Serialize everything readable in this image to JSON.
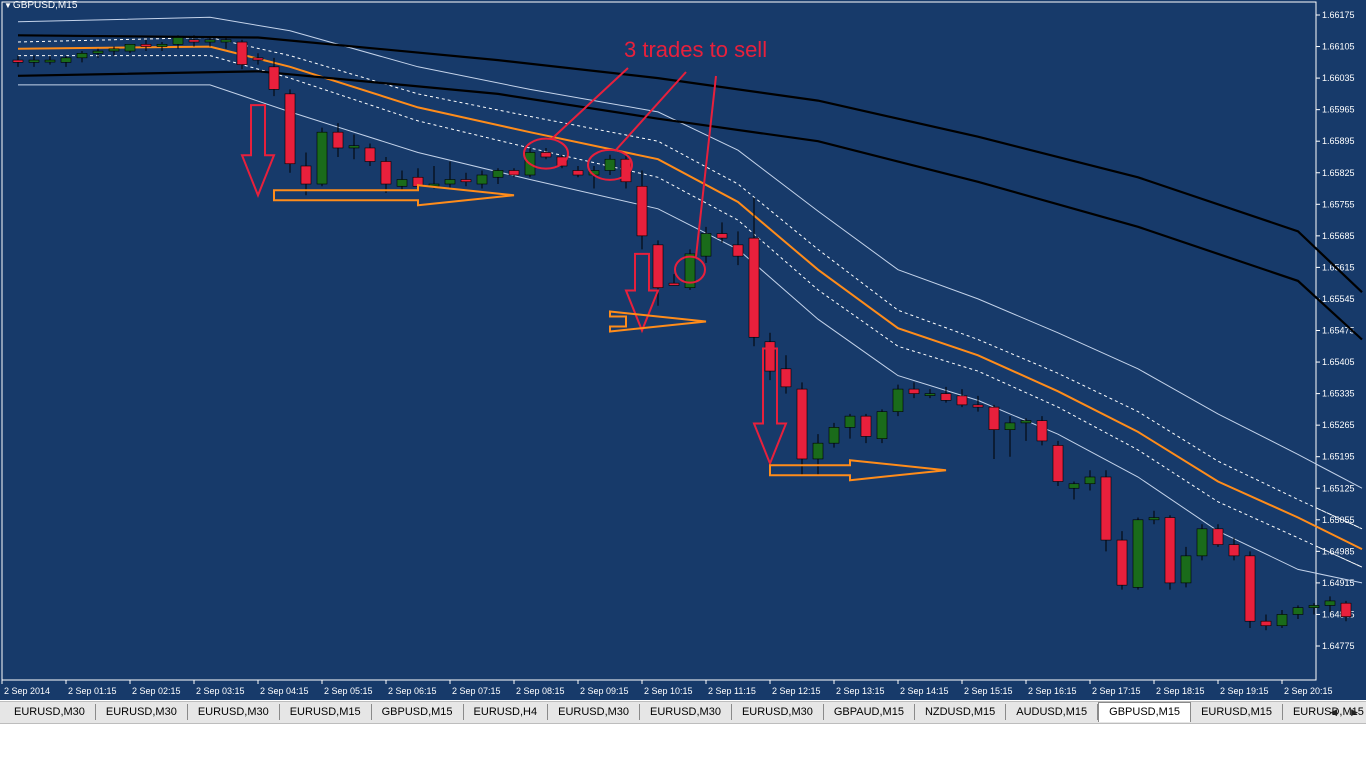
{
  "window": {
    "title": "GBPUSD,M15",
    "menu_icon": "triangle-down-icon"
  },
  "colors": {
    "background": "#173a6a",
    "axis": "#ffffff",
    "bull_candle": "#1a6b1a",
    "bear_candle": "#e8203c",
    "wick": "#000000",
    "ema": "#ff8c1a",
    "inner_band": "#ffffff",
    "outer_band": "#c4d3ea",
    "long_ma": "#000000",
    "annotation_red": "#e8203c",
    "annotation_orange": "#ff8c1a"
  },
  "chart_data": {
    "type": "candlestick",
    "symbol": "GBPUSD",
    "timeframe": "M15",
    "title": "GBPUSD,M15",
    "ylim": [
      1.64775,
      1.66175
    ],
    "y_ticks": [
      "1.66175",
      "1.66105",
      "1.66035",
      "1.65965",
      "1.65895",
      "1.65825",
      "1.65755",
      "1.65685",
      "1.65615",
      "1.65545",
      "1.65475",
      "1.65405",
      "1.65335",
      "1.65265",
      "1.65195",
      "1.65125",
      "1.65055",
      "1.64985",
      "1.64915",
      "1.64845",
      "1.64775"
    ],
    "x_ticks": [
      "2 Sep 2014",
      "2 Sep 01:15",
      "2 Sep 02:15",
      "2 Sep 03:15",
      "2 Sep 04:15",
      "2 Sep 05:15",
      "2 Sep 06:15",
      "2 Sep 07:15",
      "2 Sep 08:15",
      "2 Sep 09:15",
      "2 Sep 10:15",
      "2 Sep 11:15",
      "2 Sep 12:15",
      "2 Sep 13:15",
      "2 Sep 14:15",
      "2 Sep 15:15",
      "2 Sep 16:15",
      "2 Sep 17:15",
      "2 Sep 18:15",
      "2 Sep 19:15",
      "2 Sep 20:15"
    ],
    "grid": false,
    "annotation": "3 trades to sell",
    "candles": [
      {
        "o": 1.66075,
        "h": 1.66085,
        "l": 1.6606,
        "c": 1.6607
      },
      {
        "o": 1.6607,
        "h": 1.66085,
        "l": 1.6606,
        "c": 1.66075
      },
      {
        "o": 1.66075,
        "h": 1.66085,
        "l": 1.66065,
        "c": 1.66075
      },
      {
        "o": 1.6607,
        "h": 1.66085,
        "l": 1.6606,
        "c": 1.6608
      },
      {
        "o": 1.6608,
        "h": 1.66095,
        "l": 1.6607,
        "c": 1.6609
      },
      {
        "o": 1.6609,
        "h": 1.661,
        "l": 1.6608,
        "c": 1.66095
      },
      {
        "o": 1.66095,
        "h": 1.66105,
        "l": 1.66085,
        "c": 1.661
      },
      {
        "o": 1.66095,
        "h": 1.6611,
        "l": 1.6609,
        "c": 1.6611
      },
      {
        "o": 1.6611,
        "h": 1.6612,
        "l": 1.66095,
        "c": 1.66105
      },
      {
        "o": 1.66105,
        "h": 1.66115,
        "l": 1.66095,
        "c": 1.6611
      },
      {
        "o": 1.6611,
        "h": 1.6613,
        "l": 1.661,
        "c": 1.66125
      },
      {
        "o": 1.6612,
        "h": 1.6613,
        "l": 1.66105,
        "c": 1.66115
      },
      {
        "o": 1.66115,
        "h": 1.66125,
        "l": 1.66105,
        "c": 1.6612
      },
      {
        "o": 1.66115,
        "h": 1.66125,
        "l": 1.661,
        "c": 1.6612
      },
      {
        "o": 1.66115,
        "h": 1.6612,
        "l": 1.66055,
        "c": 1.66065
      },
      {
        "o": 1.6608,
        "h": 1.6609,
        "l": 1.66065,
        "c": 1.66075
      },
      {
        "o": 1.6606,
        "h": 1.6608,
        "l": 1.65995,
        "c": 1.6601
      },
      {
        "o": 1.66,
        "h": 1.6601,
        "l": 1.65825,
        "c": 1.65845
      },
      {
        "o": 1.6584,
        "h": 1.6587,
        "l": 1.65775,
        "c": 1.658
      },
      {
        "o": 1.658,
        "h": 1.65925,
        "l": 1.65795,
        "c": 1.65915
      },
      {
        "o": 1.65915,
        "h": 1.65935,
        "l": 1.6586,
        "c": 1.6588
      },
      {
        "o": 1.6588,
        "h": 1.6591,
        "l": 1.65855,
        "c": 1.65885
      },
      {
        "o": 1.6588,
        "h": 1.6589,
        "l": 1.6584,
        "c": 1.6585
      },
      {
        "o": 1.6585,
        "h": 1.6586,
        "l": 1.6578,
        "c": 1.658
      },
      {
        "o": 1.65795,
        "h": 1.6583,
        "l": 1.65785,
        "c": 1.6581
      },
      {
        "o": 1.65815,
        "h": 1.65835,
        "l": 1.6579,
        "c": 1.65795
      },
      {
        "o": 1.658,
        "h": 1.6584,
        "l": 1.6579,
        "c": 1.658
      },
      {
        "o": 1.658,
        "h": 1.6585,
        "l": 1.6579,
        "c": 1.6581
      },
      {
        "o": 1.6581,
        "h": 1.65825,
        "l": 1.65795,
        "c": 1.65805
      },
      {
        "o": 1.658,
        "h": 1.6583,
        "l": 1.6579,
        "c": 1.6582
      },
      {
        "o": 1.65815,
        "h": 1.65835,
        "l": 1.658,
        "c": 1.6583
      },
      {
        "o": 1.6583,
        "h": 1.65835,
        "l": 1.65815,
        "c": 1.6582
      },
      {
        "o": 1.6582,
        "h": 1.6588,
        "l": 1.65815,
        "c": 1.6587
      },
      {
        "o": 1.6587,
        "h": 1.6588,
        "l": 1.65855,
        "c": 1.6586
      },
      {
        "o": 1.6586,
        "h": 1.65865,
        "l": 1.65835,
        "c": 1.6584
      },
      {
        "o": 1.6583,
        "h": 1.6584,
        "l": 1.65815,
        "c": 1.6582
      },
      {
        "o": 1.6582,
        "h": 1.6584,
        "l": 1.6579,
        "c": 1.6583
      },
      {
        "o": 1.6583,
        "h": 1.65865,
        "l": 1.6582,
        "c": 1.65855
      },
      {
        "o": 1.65855,
        "h": 1.65865,
        "l": 1.6579,
        "c": 1.65805
      },
      {
        "o": 1.65795,
        "h": 1.6583,
        "l": 1.65655,
        "c": 1.65685
      },
      {
        "o": 1.65665,
        "h": 1.65675,
        "l": 1.6553,
        "c": 1.6557
      },
      {
        "o": 1.6558,
        "h": 1.656,
        "l": 1.65575,
        "c": 1.65575
      },
      {
        "o": 1.6557,
        "h": 1.65655,
        "l": 1.65565,
        "c": 1.65645
      },
      {
        "o": 1.6564,
        "h": 1.65705,
        "l": 1.65625,
        "c": 1.6569
      },
      {
        "o": 1.6569,
        "h": 1.65715,
        "l": 1.6567,
        "c": 1.6568
      },
      {
        "o": 1.65665,
        "h": 1.65695,
        "l": 1.6562,
        "c": 1.6564
      },
      {
        "o": 1.6568,
        "h": 1.6577,
        "l": 1.6544,
        "c": 1.6546
      },
      {
        "o": 1.6545,
        "h": 1.6547,
        "l": 1.65365,
        "c": 1.65385
      },
      {
        "o": 1.6539,
        "h": 1.6542,
        "l": 1.65335,
        "c": 1.6535
      },
      {
        "o": 1.65345,
        "h": 1.6536,
        "l": 1.65155,
        "c": 1.6519
      },
      {
        "o": 1.6519,
        "h": 1.65245,
        "l": 1.65155,
        "c": 1.65225
      },
      {
        "o": 1.65225,
        "h": 1.6527,
        "l": 1.65215,
        "c": 1.6526
      },
      {
        "o": 1.6526,
        "h": 1.6529,
        "l": 1.65235,
        "c": 1.65285
      },
      {
        "o": 1.65285,
        "h": 1.6529,
        "l": 1.65225,
        "c": 1.6524
      },
      {
        "o": 1.65235,
        "h": 1.653,
        "l": 1.65225,
        "c": 1.65295
      },
      {
        "o": 1.65295,
        "h": 1.65355,
        "l": 1.65285,
        "c": 1.65345
      },
      {
        "o": 1.65345,
        "h": 1.6536,
        "l": 1.65325,
        "c": 1.65335
      },
      {
        "o": 1.65335,
        "h": 1.65345,
        "l": 1.65325,
        "c": 1.65335
      },
      {
        "o": 1.65335,
        "h": 1.6535,
        "l": 1.65315,
        "c": 1.6532
      },
      {
        "o": 1.6533,
        "h": 1.65345,
        "l": 1.65305,
        "c": 1.6531
      },
      {
        "o": 1.6531,
        "h": 1.6533,
        "l": 1.65295,
        "c": 1.65305
      },
      {
        "o": 1.65305,
        "h": 1.6531,
        "l": 1.6519,
        "c": 1.65255
      },
      {
        "o": 1.65255,
        "h": 1.65285,
        "l": 1.65195,
        "c": 1.6527
      },
      {
        "o": 1.6527,
        "h": 1.6528,
        "l": 1.6523,
        "c": 1.65275
      },
      {
        "o": 1.65275,
        "h": 1.65285,
        "l": 1.6522,
        "c": 1.6523
      },
      {
        "o": 1.6522,
        "h": 1.6523,
        "l": 1.6513,
        "c": 1.6514
      },
      {
        "o": 1.65125,
        "h": 1.6514,
        "l": 1.651,
        "c": 1.65135
      },
      {
        "o": 1.65135,
        "h": 1.65165,
        "l": 1.6512,
        "c": 1.6515
      },
      {
        "o": 1.6515,
        "h": 1.65165,
        "l": 1.64985,
        "c": 1.6501
      },
      {
        "o": 1.6501,
        "h": 1.6503,
        "l": 1.649,
        "c": 1.6491
      },
      {
        "o": 1.64905,
        "h": 1.6506,
        "l": 1.649,
        "c": 1.65055
      },
      {
        "o": 1.65055,
        "h": 1.65075,
        "l": 1.65045,
        "c": 1.6506
      },
      {
        "o": 1.6506,
        "h": 1.65065,
        "l": 1.649,
        "c": 1.64915
      },
      {
        "o": 1.64915,
        "h": 1.64995,
        "l": 1.64905,
        "c": 1.64975
      },
      {
        "o": 1.64975,
        "h": 1.65045,
        "l": 1.64965,
        "c": 1.65035
      },
      {
        "o": 1.65035,
        "h": 1.65045,
        "l": 1.64995,
        "c": 1.65
      },
      {
        "o": 1.65,
        "h": 1.65015,
        "l": 1.64965,
        "c": 1.64975
      },
      {
        "o": 1.64975,
        "h": 1.64985,
        "l": 1.64815,
        "c": 1.6483
      },
      {
        "o": 1.6483,
        "h": 1.64845,
        "l": 1.6481,
        "c": 1.6482
      },
      {
        "o": 1.6482,
        "h": 1.64855,
        "l": 1.64815,
        "c": 1.64845
      },
      {
        "o": 1.64845,
        "h": 1.64865,
        "l": 1.64835,
        "c": 1.6486
      },
      {
        "o": 1.6486,
        "h": 1.6487,
        "l": 1.64845,
        "c": 1.64865
      },
      {
        "o": 1.64865,
        "h": 1.64885,
        "l": 1.6485,
        "c": 1.64875
      },
      {
        "o": 1.6487,
        "h": 1.64875,
        "l": 1.6483,
        "c": 1.6484
      }
    ],
    "indicators": [
      {
        "name": "ema",
        "color": "#ff8c1a",
        "values": [
          [
            0,
            1.661
          ],
          [
            12,
            1.66105
          ],
          [
            17,
            1.6606
          ],
          [
            25,
            1.6597
          ],
          [
            32,
            1.65915
          ],
          [
            40,
            1.65855
          ],
          [
            45,
            1.6576
          ],
          [
            50,
            1.6561
          ],
          [
            55,
            1.6548
          ],
          [
            60,
            1.6542
          ],
          [
            65,
            1.6534
          ],
          [
            70,
            1.6525
          ],
          [
            75,
            1.6514
          ],
          [
            80,
            1.6506
          ],
          [
            84,
            1.6499
          ]
        ]
      },
      {
        "name": "inner-upper-band",
        "color": "#ffffff",
        "dashed": true,
        "values": [
          [
            0,
            1.66115
          ],
          [
            12,
            1.66125
          ],
          [
            17,
            1.66085
          ],
          [
            25,
            1.66
          ],
          [
            32,
            1.6595
          ],
          [
            40,
            1.65895
          ],
          [
            45,
            1.658
          ],
          [
            50,
            1.65655
          ],
          [
            55,
            1.6552
          ],
          [
            60,
            1.65455
          ],
          [
            65,
            1.6538
          ],
          [
            70,
            1.65295
          ],
          [
            75,
            1.65185
          ],
          [
            80,
            1.651
          ],
          [
            84,
            1.65035
          ]
        ]
      },
      {
        "name": "inner-lower-band",
        "color": "#ffffff",
        "dashed": true,
        "values": [
          [
            0,
            1.66085
          ],
          [
            12,
            1.66085
          ],
          [
            17,
            1.66035
          ],
          [
            25,
            1.6594
          ],
          [
            32,
            1.6588
          ],
          [
            40,
            1.65815
          ],
          [
            45,
            1.6572
          ],
          [
            50,
            1.65565
          ],
          [
            55,
            1.6544
          ],
          [
            60,
            1.65385
          ],
          [
            65,
            1.65305
          ],
          [
            70,
            1.6521
          ],
          [
            75,
            1.65095
          ],
          [
            80,
            1.65015
          ],
          [
            84,
            1.6495
          ]
        ]
      },
      {
        "name": "outer-upper-band",
        "color": "#c4d3ea",
        "values": [
          [
            0,
            1.6616
          ],
          [
            12,
            1.6617
          ],
          [
            17,
            1.6614
          ],
          [
            25,
            1.6606
          ],
          [
            32,
            1.6601
          ],
          [
            40,
            1.6596
          ],
          [
            45,
            1.65875
          ],
          [
            50,
            1.6574
          ],
          [
            55,
            1.6561
          ],
          [
            60,
            1.65545
          ],
          [
            65,
            1.6547
          ],
          [
            70,
            1.6539
          ],
          [
            75,
            1.6529
          ],
          [
            80,
            1.652
          ],
          [
            84,
            1.65125
          ]
        ]
      },
      {
        "name": "outer-lower-band",
        "color": "#c4d3ea",
        "values": [
          [
            0,
            1.6602
          ],
          [
            12,
            1.6602
          ],
          [
            17,
            1.6596
          ],
          [
            25,
            1.6587
          ],
          [
            32,
            1.6581
          ],
          [
            40,
            1.65745
          ],
          [
            45,
            1.65655
          ],
          [
            50,
            1.655
          ],
          [
            55,
            1.65375
          ],
          [
            60,
            1.6532
          ],
          [
            65,
            1.65245
          ],
          [
            70,
            1.6515
          ],
          [
            75,
            1.6503
          ],
          [
            80,
            1.64945
          ],
          [
            84,
            1.64915
          ]
        ]
      },
      {
        "name": "long-ma-upper",
        "color": "#000000",
        "values": [
          [
            0,
            1.6613
          ],
          [
            15,
            1.66125
          ],
          [
            30,
            1.66075
          ],
          [
            40,
            1.66035
          ],
          [
            50,
            1.65985
          ],
          [
            60,
            1.65905
          ],
          [
            70,
            1.65815
          ],
          [
            80,
            1.65695
          ],
          [
            84,
            1.6556
          ]
        ]
      },
      {
        "name": "long-ma-lower",
        "color": "#000000",
        "values": [
          [
            0,
            1.6604
          ],
          [
            15,
            1.6605
          ],
          [
            30,
            1.66
          ],
          [
            40,
            1.65945
          ],
          [
            50,
            1.65895
          ],
          [
            60,
            1.65805
          ],
          [
            70,
            1.65705
          ],
          [
            80,
            1.65585
          ],
          [
            84,
            1.65455
          ]
        ]
      }
    ],
    "sell_arrows": [
      {
        "from": [
          15,
          1.65975
        ],
        "to": [
          15,
          1.65775
        ]
      },
      {
        "from": [
          39,
          1.65645
        ],
        "to": [
          39,
          1.65475
        ]
      },
      {
        "from": [
          47,
          1.65435
        ],
        "to": [
          47,
          1.6518
        ]
      }
    ],
    "flat_arrows": [
      {
        "from": [
          16,
          1.65775
        ],
        "to": [
          31,
          1.65775
        ]
      },
      {
        "from": [
          38,
          1.65495
        ],
        "to": [
          43,
          1.65495
        ]
      },
      {
        "from": [
          47,
          1.65165
        ],
        "to": [
          58,
          1.65165
        ]
      }
    ],
    "marked_candles": [
      33,
      37,
      42
    ]
  },
  "tabs": [
    {
      "label": "EURUSD,M30",
      "active": false
    },
    {
      "label": "EURUSD,M30",
      "active": false
    },
    {
      "label": "EURUSD,M30",
      "active": false
    },
    {
      "label": "EURUSD,M15",
      "active": false
    },
    {
      "label": "GBPUSD,M15",
      "active": false
    },
    {
      "label": "EURUSD,H4",
      "active": false
    },
    {
      "label": "EURUSD,M30",
      "active": false
    },
    {
      "label": "EURUSD,M30",
      "active": false
    },
    {
      "label": "EURUSD,M30",
      "active": false
    },
    {
      "label": "GBPAUD,M15",
      "active": false
    },
    {
      "label": "NZDUSD,M15",
      "active": false
    },
    {
      "label": "AUDUSD,M15",
      "active": false
    },
    {
      "label": "GBPUSD,M15",
      "active": true
    },
    {
      "label": "EURUSD,M15",
      "active": false
    },
    {
      "label": "EURUSD,M15",
      "active": false
    }
  ],
  "tab_scroll": {
    "left_icon": "triangle-left-icon",
    "right_icon": "triangle-right-icon"
  }
}
